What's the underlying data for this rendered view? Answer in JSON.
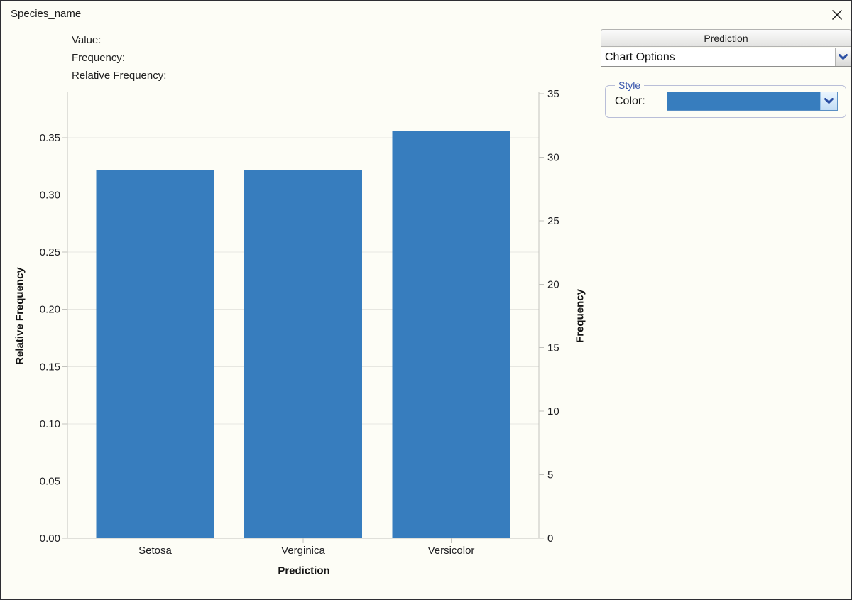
{
  "window": {
    "title": "Species_name"
  },
  "tooltip_fields": {
    "value_label": "Value:",
    "frequency_label": "Frequency:",
    "relative_frequency_label": "Relative Frequency:"
  },
  "chart_data": {
    "type": "bar",
    "categories": [
      "Setosa",
      "Verginica",
      "Versicolor"
    ],
    "series": [
      {
        "name": "Frequency",
        "values": [
          29,
          29,
          32
        ]
      },
      {
        "name": "Relative Frequency",
        "values": [
          0.322,
          0.322,
          0.356
        ]
      }
    ],
    "xlabel": "Prediction",
    "left_axis": {
      "label": "Relative Frequency",
      "ticks": [
        "0.00",
        "0.05",
        "0.10",
        "0.15",
        "0.20",
        "0.25",
        "0.30",
        "0.35"
      ],
      "range": [
        0,
        0.35
      ]
    },
    "right_axis": {
      "label": "Frequency",
      "ticks": [
        "0",
        "5",
        "10",
        "15",
        "20",
        "25",
        "30",
        "35"
      ],
      "range": [
        0,
        35
      ]
    },
    "bar_color": "#377dbe",
    "grid": true,
    "legend": "none"
  },
  "panel": {
    "header": "Prediction",
    "combo_value": "Chart Options",
    "style_group": {
      "legend": "Style",
      "color_label": "Color:",
      "color_value": "#377dbe"
    }
  },
  "colors": {
    "accent_blue": "#377dbe",
    "style_legend_blue": "#3a57ad",
    "chevron_blue": "#2b4fa3",
    "background": "#fdfdf6",
    "gridline": "#e7e7e1",
    "axis_line": "#c2c2bd"
  }
}
